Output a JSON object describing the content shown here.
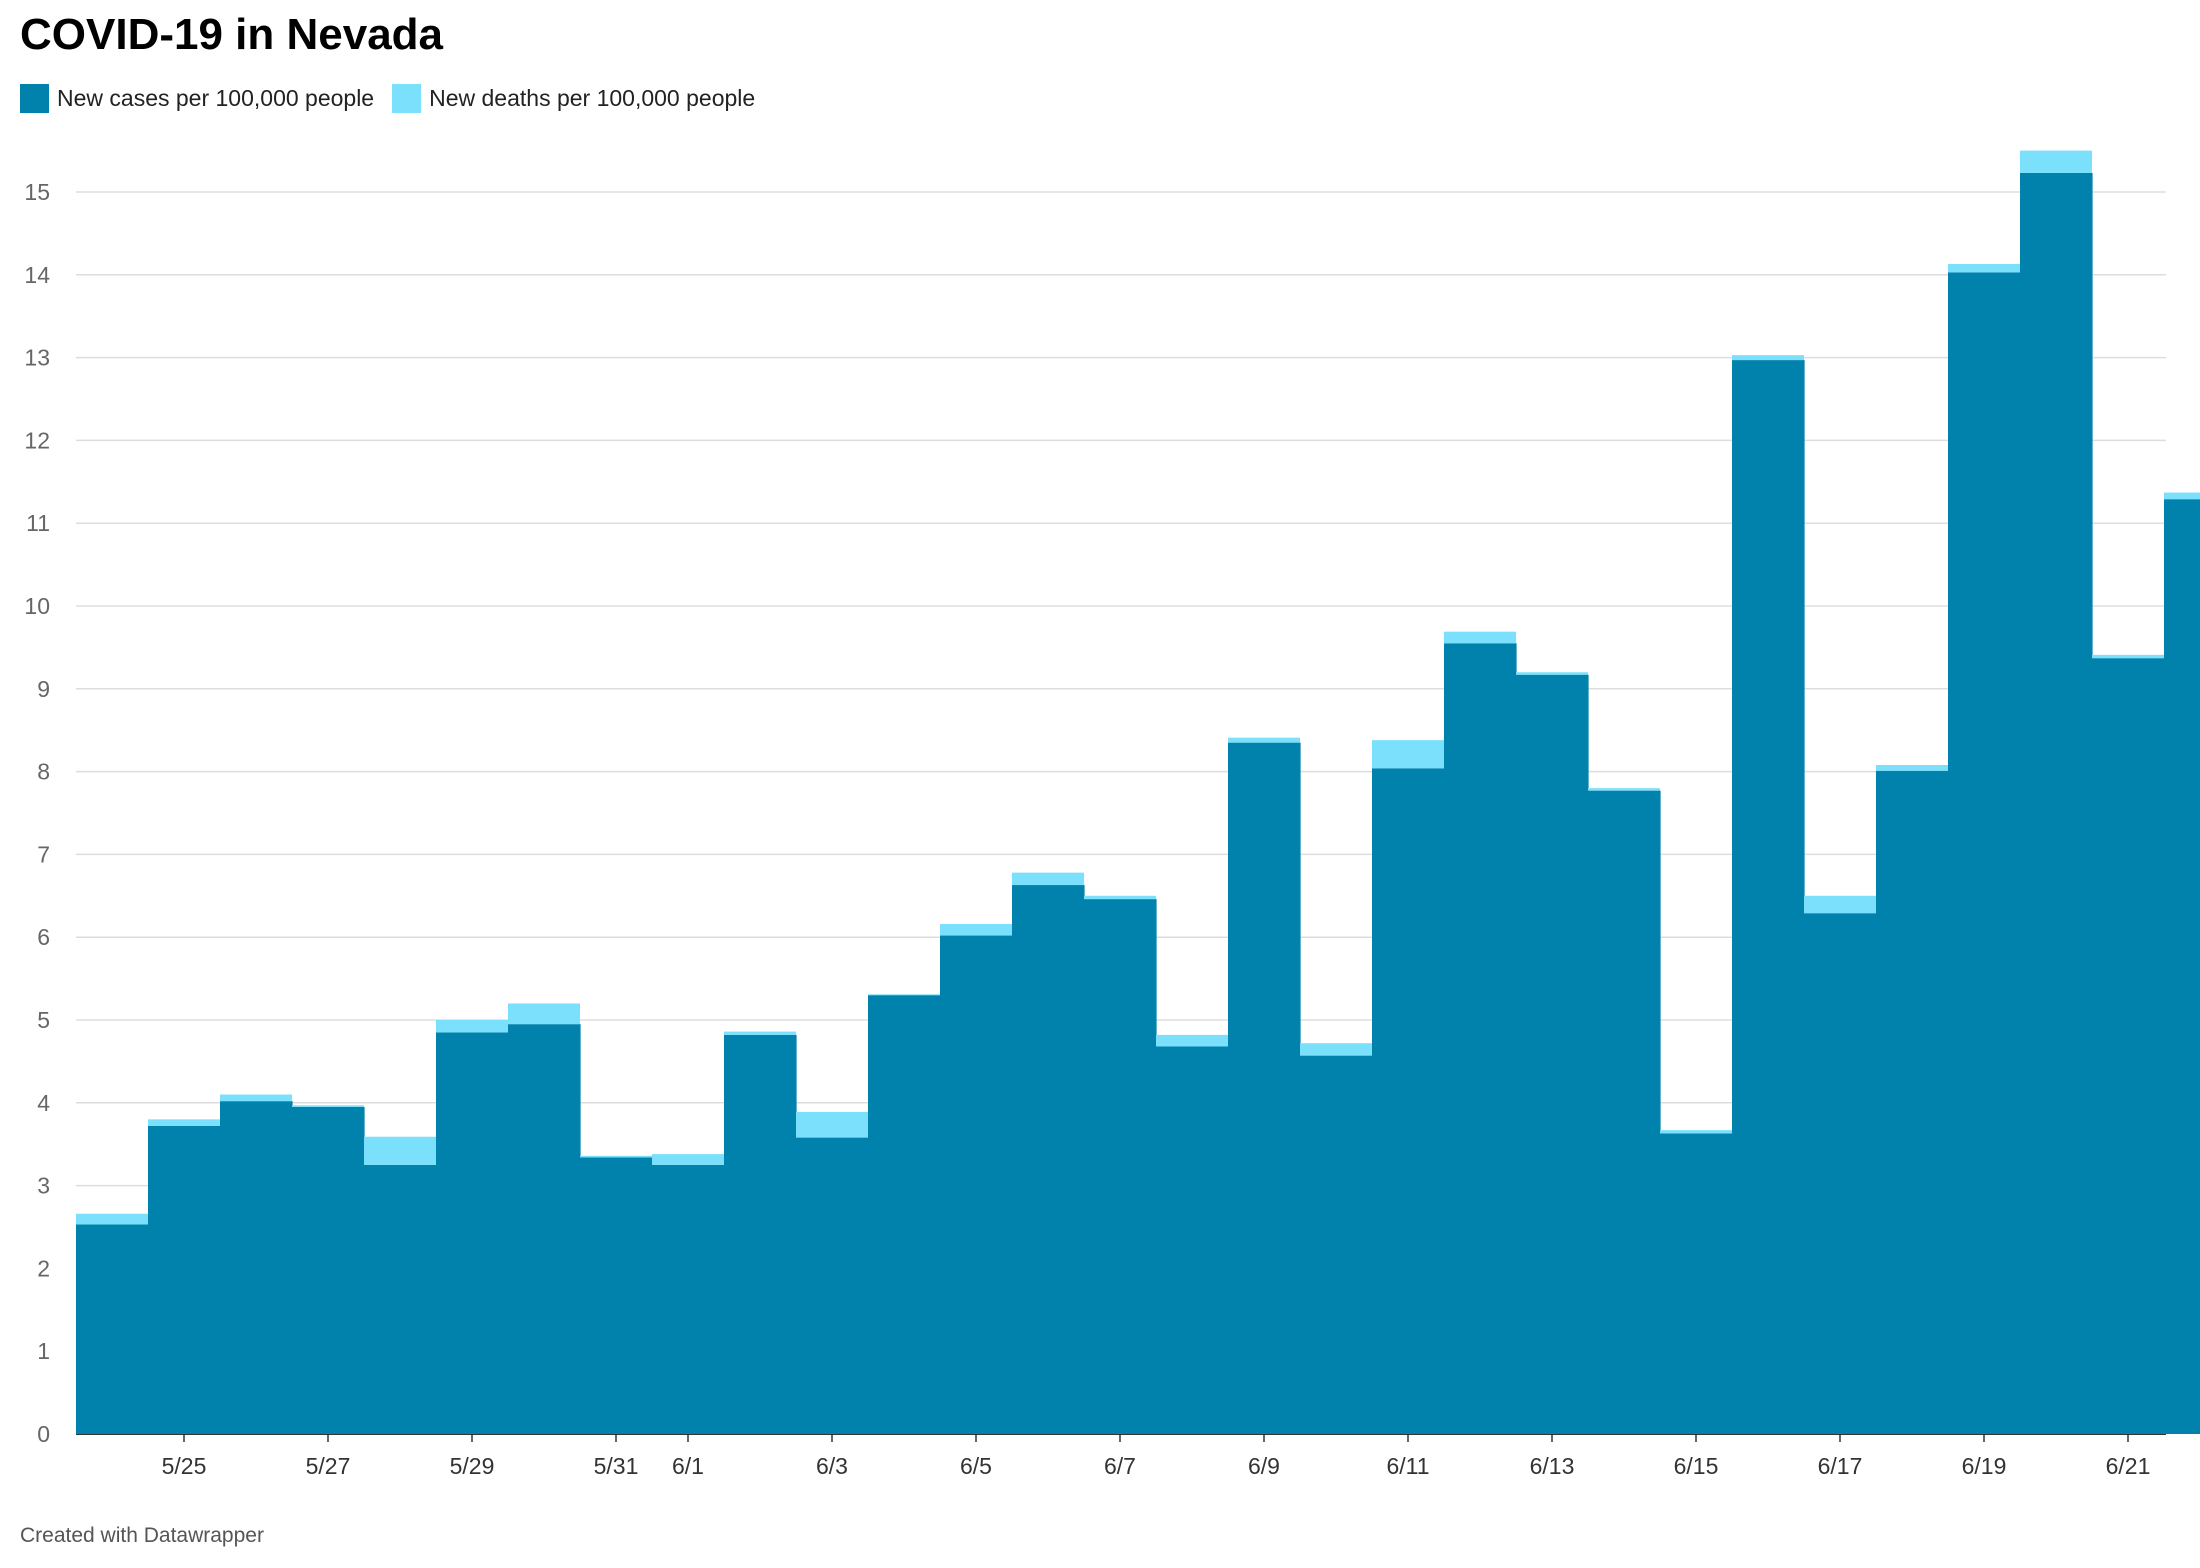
{
  "title": "COVID-19 in Nevada",
  "footer": "Created with Datawrapper",
  "colors": {
    "cases": "#0082ad",
    "deaths": "#7be0fc",
    "grid": "#dddddd"
  },
  "chart_data": {
    "type": "bar",
    "stacked": true,
    "title": "COVID-19 in Nevada",
    "xlabel": "",
    "ylabel": "",
    "ylim": [
      0,
      15.5
    ],
    "grid": true,
    "legend_position": "top-left",
    "y_ticks": [
      0,
      1,
      2,
      3,
      4,
      5,
      6,
      7,
      8,
      9,
      10,
      11,
      12,
      13,
      14,
      15
    ],
    "categories": [
      "5/24",
      "5/25",
      "5/26",
      "5/27",
      "5/28",
      "5/29",
      "5/30",
      "5/31",
      "6/1",
      "6/2",
      "6/3",
      "6/4",
      "6/5",
      "6/6",
      "6/7",
      "6/8",
      "6/9",
      "6/10",
      "6/11",
      "6/12",
      "6/13",
      "6/14",
      "6/15",
      "6/16",
      "6/17",
      "6/18",
      "6/19",
      "6/20",
      "6/21",
      "6/22"
    ],
    "x_tick_labels": [
      "5/25",
      "5/27",
      "5/29",
      "5/31",
      "6/1",
      "6/3",
      "6/5",
      "6/7",
      "6/9",
      "6/11",
      "6/13",
      "6/15",
      "6/17",
      "6/19",
      "6/21"
    ],
    "series": [
      {
        "name": "New cases per 100,000 people",
        "values": [
          2.53,
          3.72,
          4.02,
          3.95,
          3.25,
          4.85,
          4.95,
          3.34,
          3.25,
          4.82,
          3.58,
          5.3,
          6.02,
          6.63,
          6.46,
          4.68,
          8.35,
          4.57,
          8.04,
          9.55,
          9.17,
          7.77,
          3.63,
          12.97,
          6.29,
          8.01,
          14.03,
          15.23,
          9.37,
          11.29
        ]
      },
      {
        "name": "New deaths per 100,000 people",
        "values": [
          0.13,
          0.08,
          0.08,
          0.02,
          0.34,
          0.15,
          0.25,
          0.02,
          0.13,
          0.04,
          0.31,
          0.01,
          0.14,
          0.15,
          0.04,
          0.14,
          0.06,
          0.15,
          0.34,
          0.14,
          0.03,
          0.03,
          0.04,
          0.06,
          0.21,
          0.07,
          0.1,
          0.27,
          0.04,
          0.08
        ]
      }
    ]
  }
}
